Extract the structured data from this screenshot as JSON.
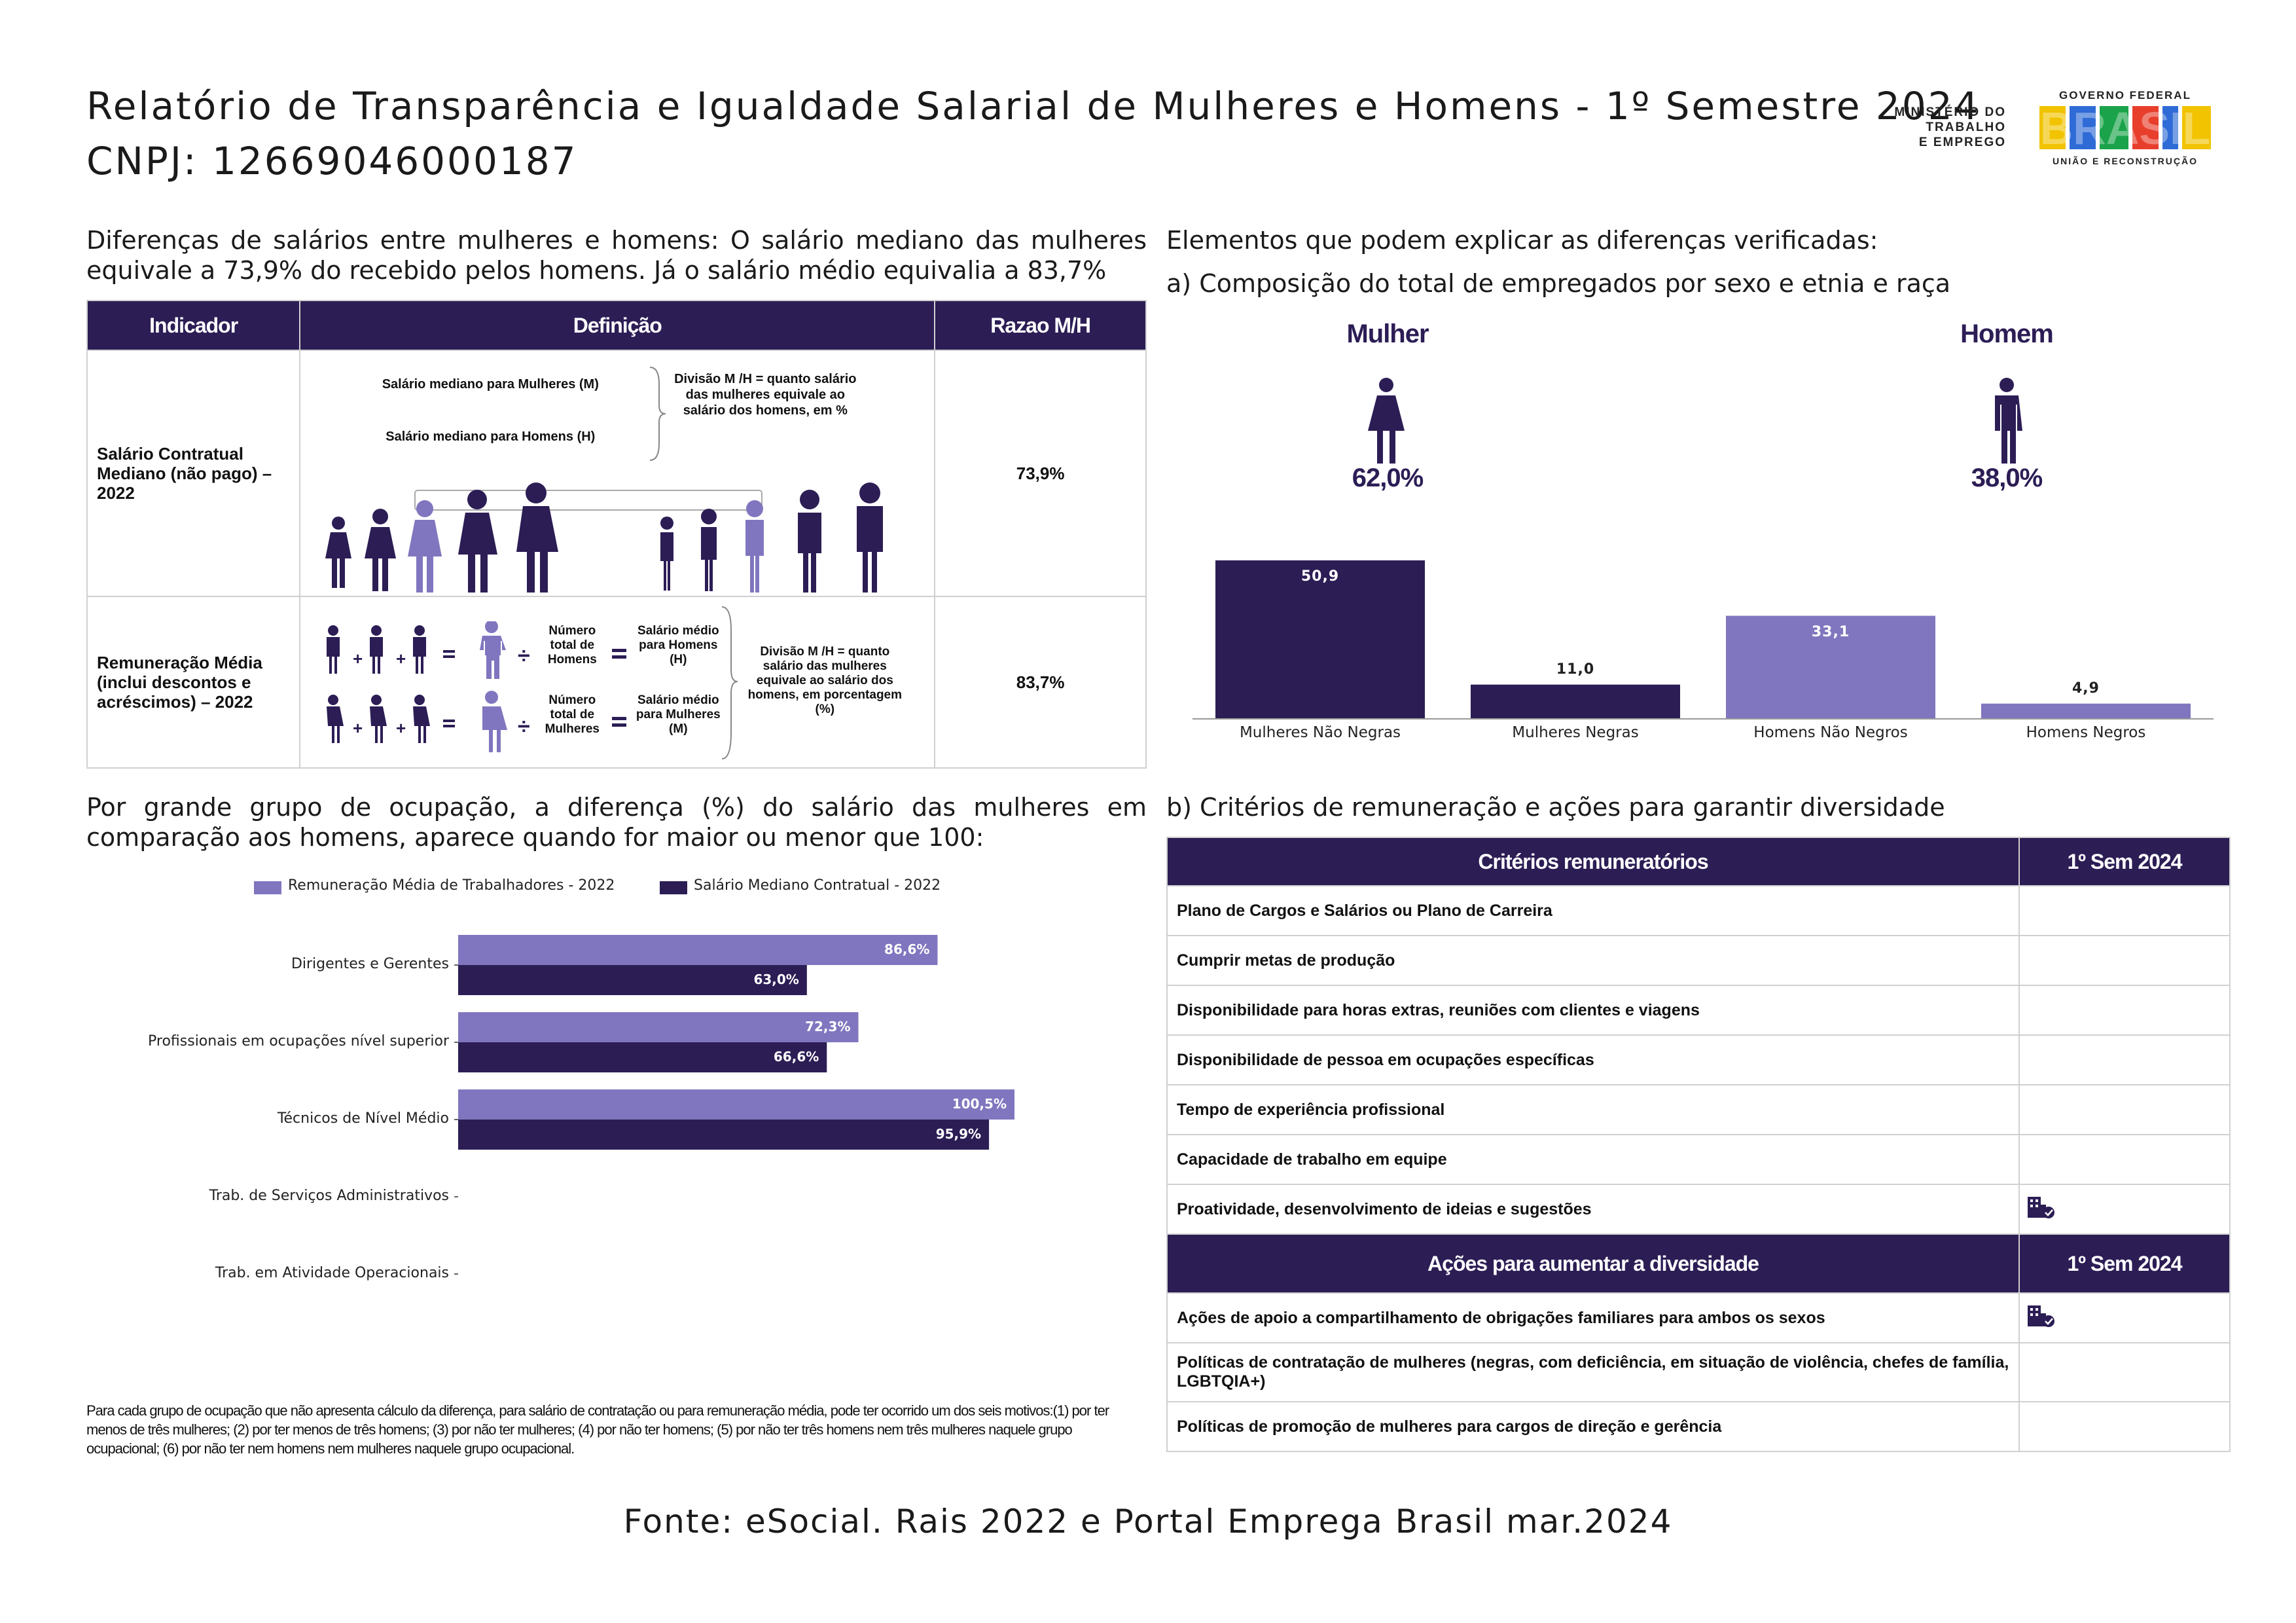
{
  "header": {
    "title": "Relatório de Transparência e Igualdade Salarial de Mulheres e Homens - 1º Semestre 2024",
    "cnpj": "CNPJ: 12669046000187"
  },
  "logos": {
    "mte": [
      "MINISTÉRIO DO",
      "TRABALHO",
      "E EMPREGO"
    ],
    "gov_top": "GOVERNO FEDERAL",
    "gov_word": "BRASIL",
    "gov_bottom": "UNIÃO E RECONSTRUÇÃO"
  },
  "left": {
    "intro": "Diferenças de salários entre mulheres e homens: O salário mediano das mulheres equivale a 73,9% do recebido pelos homens. Já o salário médio equivalia a 83,7%",
    "indicator_table": {
      "headers": [
        "Indicador",
        "Definição",
        "Razao M/H"
      ],
      "rows": [
        {
          "name": "Salário Contratual Mediano (não pago) – 2022",
          "def_line1": "Salário mediano para Mulheres (M)",
          "def_line2": "Salário mediano para Homens (H)",
          "def_note": "Divisão M /H = quanto salário das mulheres equivale ao salário dos homens, em %",
          "value": "73,9%"
        },
        {
          "name": "Remuneração Média (inclui descontos e acréscimos) – 2022",
          "def_total_men": "Número total de Homens",
          "def_total_women": "Número total de Mulheres",
          "def_avg_men": "Salário médio para Homens (H)",
          "def_avg_women": "Salário médio para Mulheres (M)",
          "def_note": "Divisão M /H = quanto salário das mulheres equivale ao salário dos homens, em porcentagem (%)",
          "value": "83,7%"
        }
      ]
    },
    "occupation_intro": "Por grande grupo de ocupação, a diferença (%) do salário das mulheres em comparação aos homens, aparece quando for maior ou menor que 100:",
    "footnote": "Para cada grupo de ocupação que não apresenta cálculo da diferença, para salário de contratação ou para remuneração média, pode ter ocorrido um dos seis motivos:(1) por ter menos de três mulheres; (2) por ter menos de três homens; (3) por não ter mulheres; (4) por não ter homens; (5) por não ter três homens nem três mulheres naquele grupo ocupacional; (6) por não ter nem homens nem mulheres naquele grupo ocupacional."
  },
  "right": {
    "intro": "Elementos que podem explicar as diferenças verificadas:",
    "section_a": "a) Composição do total de empregados por sexo e etnia e raça",
    "section_b": "b) Critérios de remuneração e ações para garantir diversidade",
    "woman_label": "Mulher",
    "woman_pct": "62,0%",
    "man_label": "Homem",
    "man_pct": "38,0%",
    "criteria_table": {
      "headers": [
        "Critérios remuneratórios",
        "1º Sem 2024"
      ],
      "rows": [
        {
          "label": "Plano de Cargos e Salários ou Plano de Carreira",
          "checked": false
        },
        {
          "label": "Cumprir metas de produção",
          "checked": false
        },
        {
          "label": "Disponibilidade para horas extras, reuniões com clientes e viagens",
          "checked": false
        },
        {
          "label": "Disponibilidade de pessoa em ocupações específicas",
          "checked": false
        },
        {
          "label": "Tempo de experiência profissional",
          "checked": false
        },
        {
          "label": "Capacidade de trabalho em equipe",
          "checked": false
        },
        {
          "label": "Proatividade, desenvolvimento de ideias e sugestões",
          "checked": true
        }
      ]
    },
    "actions_table": {
      "headers": [
        "Ações para aumentar a diversidade",
        "1º Sem 2024"
      ],
      "rows": [
        {
          "label": "Ações de apoio a compartilhamento de obrigações familiares para ambos os sexos",
          "checked": true
        },
        {
          "label": "Políticas de contratação de mulheres (negras, com deficiência, em situação de violência, chefes de família, LGBTQIA+)",
          "checked": false
        },
        {
          "label": "Políticas de promoção de mulheres para cargos de direção e gerência",
          "checked": false
        }
      ]
    }
  },
  "chart_data": [
    {
      "type": "bar",
      "categories": [
        "Mulheres Não Negras",
        "Mulheres Negras",
        "Homens Não Negros",
        "Homens Negros"
      ],
      "values": [
        50.9,
        11.0,
        33.1,
        4.9
      ],
      "value_labels": [
        "50,9",
        "11,0",
        "33,1",
        "4,9"
      ],
      "colors": [
        "#2c1d55",
        "#2c1d55",
        "#8076bf",
        "#8076bf"
      ],
      "ylim": [
        0,
        55
      ]
    },
    {
      "type": "bar",
      "orientation": "horizontal",
      "categories": [
        "Dirigentes e Gerentes",
        "Profissionais em ocupações nível superior",
        "Técnicos de Nível Médio",
        "Trab. de Serviços Administrativos",
        "Trab. em Atividade Operacionais"
      ],
      "series": [
        {
          "name": "Remuneração Média de Trabalhadores - 2022",
          "color": "#8076bf",
          "values": [
            86.6,
            72.3,
            100.5,
            null,
            null
          ],
          "labels": [
            "86,6%",
            "72,3%",
            "100,5%",
            "",
            ""
          ]
        },
        {
          "name": "Salário Mediano Contratual - 2022",
          "color": "#2c1d55",
          "values": [
            63.0,
            66.6,
            95.9,
            null,
            null
          ],
          "labels": [
            "63,0%",
            "66,6%",
            "95,9%",
            "",
            ""
          ]
        }
      ],
      "xlim": [
        0,
        100.5
      ],
      "legend": "top"
    }
  ]
}
